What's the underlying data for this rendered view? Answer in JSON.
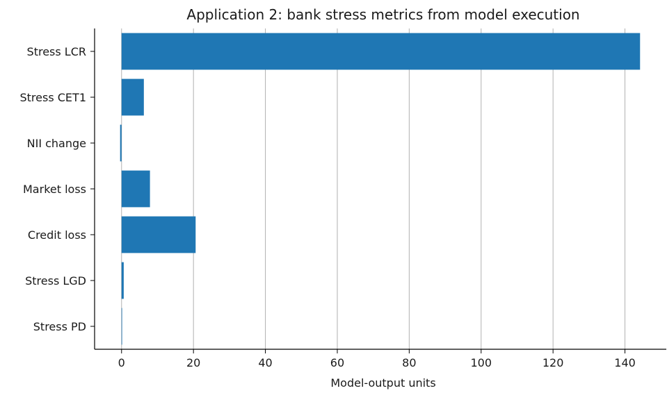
{
  "chart_data": {
    "type": "bar",
    "orientation": "horizontal",
    "title": "Application 2: bank stress metrics from model execution",
    "xlabel": "Model-output units",
    "ylabel": "",
    "categories": [
      "Stress PD",
      "Stress LGD",
      "Credit loss",
      "Market loss",
      "NII change",
      "Stress CET1",
      "Stress LCR"
    ],
    "values": [
      0.1,
      0.6,
      20.6,
      7.9,
      -0.4,
      6.2,
      144.2
    ],
    "xlim": [
      -7.5,
      151.5
    ],
    "xticks": [
      0,
      20,
      40,
      60,
      80,
      100,
      120,
      140
    ],
    "grid": "x",
    "bar_color": "#1f77b4"
  }
}
